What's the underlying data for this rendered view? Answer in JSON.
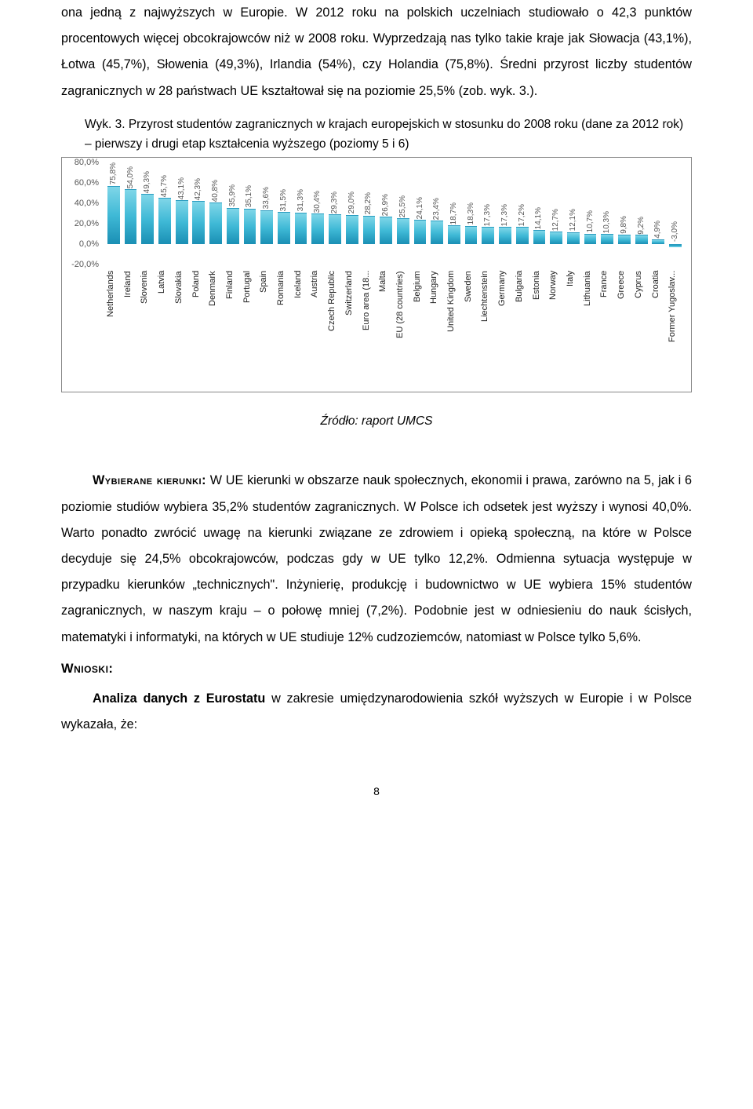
{
  "para1": "ona jedną z najwyższych w Europie. W 2012 roku na polskich uczelniach studiowało o 42,3 punktów procentowych więcej obcokrajowców niż w 2008 roku. Wyprzedzają nas tylko takie kraje jak Słowacja (43,1%), Łotwa (45,7%), Słowenia (49,3%), Irlandia (54%), czy Holandia (75,8%). Średni przyrost liczby studentów zagranicznych w 28 państwach UE kształtował się na poziomie 25,5% (zob. wyk. 3.).",
  "chart_caption": "Wyk. 3. Przyrost studentów zagranicznych w krajach europejskich w stosunku do 2008 roku (dane za 2012 rok) – pierwszy i drugi etap kształcenia wyższego (poziomy 5 i 6)",
  "chart": {
    "ylim": [
      -20,
      80
    ],
    "yticks": [
      "80,0%",
      "60,0%",
      "40,0%",
      "20,0%",
      "0,0%",
      "-20,0%"
    ],
    "ytick_vals": [
      80,
      60,
      40,
      20,
      0,
      -20
    ],
    "bar_color_top": "#7fd6e8",
    "bar_color_mid": "#3fb9d6",
    "bar_color_bot": "#1a8fb4",
    "text_color": "#555555",
    "categories": [
      "Netherlands",
      "Ireland",
      "Slovenia",
      "Latvia",
      "Slovakia",
      "Poland",
      "Denmark",
      "Finland",
      "Portugal",
      "Spain",
      "Romania",
      "Iceland",
      "Austria",
      "Czech Republic",
      "Switzerland",
      "Euro area (18...",
      "Malta",
      "EU (28 countries)",
      "Belgium",
      "Hungary",
      "United Kingdom",
      "Sweden",
      "Liechtenstein",
      "Germany",
      "Bulgaria",
      "Estonia",
      "Norway",
      "Italy",
      "Lithuania",
      "France",
      "Greece",
      "Cyprus",
      "Croatia",
      "Former Yugoslav..."
    ],
    "value_labels": [
      "75,8%",
      "54,0%",
      "49,3%",
      "45,7%",
      "43,1%",
      "42,3%",
      "40,8%",
      "35,9%",
      "35,1%",
      "33,6%",
      "31,5%",
      "31,3%",
      "30,4%",
      "29,3%",
      "29,0%",
      "28,2%",
      "26,9%",
      "25,5%",
      "24,1%",
      "23,4%",
      "18,7%",
      "18,3%",
      "17,3%",
      "17,3%",
      "17,2%",
      "14,1%",
      "12,7%",
      "12,1%",
      "10,7%",
      "10,3%",
      "9,8%",
      "9,2%",
      "4,9%",
      "-3,0%"
    ],
    "values": [
      75.8,
      54.0,
      49.3,
      45.7,
      43.1,
      42.3,
      40.8,
      35.9,
      35.1,
      33.6,
      31.5,
      31.3,
      30.4,
      29.3,
      29.0,
      28.2,
      26.9,
      25.5,
      24.1,
      23.4,
      18.7,
      18.3,
      17.3,
      17.3,
      17.2,
      14.1,
      12.7,
      12.1,
      10.7,
      10.3,
      9.8,
      9.2,
      4.9,
      -3.0
    ]
  },
  "source": "Źródło: raport UMCS",
  "para2_label": "Wybierane kierunki:",
  "para2": " W UE kierunki w obszarze nauk społecznych, ekonomii i prawa, zarówno na 5, jak i 6 poziomie studiów wybiera 35,2% studentów zagranicznych. W Polsce ich odsetek jest wyższy i wynosi 40,0%. Warto ponadto zwrócić uwagę na kierunki związane ze zdrowiem i opieką społeczną, na które w Polsce decyduje się 24,5% obcokrajowców, podczas gdy w UE tylko 12,2%. Odmienna sytuacja występuje w przypadku kierunków „technicznych\". Inżynierię, produkcję i budownictwo w UE wybiera 15% studentów zagranicznych, w naszym kraju – o połowę mniej (7,2%). Podobnie jest w odniesieniu do nauk ścisłych, matematyki i informatyki, na których w UE studiuje 12% cudzoziemców, natomiast w Polsce tylko 5,6%.",
  "wnioski_h": "Wnioski:",
  "para3_bold": "Analiza danych z Eurostatu",
  "para3_rest": " w zakresie umiędzynarodowienia szkół wyższych w Europie i w Polsce wykazała, że:",
  "page_num": "8"
}
